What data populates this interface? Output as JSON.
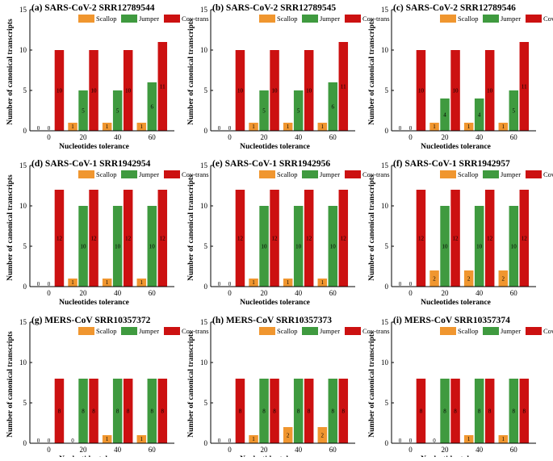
{
  "colors": {
    "Scallop": "#f0962f",
    "Jumper": "#3f9a3f",
    "Cov-trans": "#cc1111"
  },
  "chart_data": [
    {
      "type": "bar",
      "title": "(a) SARS-CoV-2 SRR12789544",
      "categories": [
        "0",
        "20",
        "40",
        "60"
      ],
      "series": [
        {
          "name": "Scallop",
          "values": [
            0,
            1,
            1,
            1
          ]
        },
        {
          "name": "Jumper",
          "values": [
            0,
            5,
            5,
            6
          ]
        },
        {
          "name": "Cov-trans",
          "values": [
            10,
            10,
            10,
            11
          ]
        }
      ],
      "xlabel": "Nucleotides tolerance",
      "ylabel": "Number of canonical transcripts",
      "ylim": [
        0,
        15
      ],
      "yticks": [
        "0",
        "5",
        "10",
        "15"
      ],
      "legend": [
        "Scallop",
        "Jumper",
        "Cov-trans"
      ]
    },
    {
      "type": "bar",
      "title": "(b) SARS-CoV-2 SRR12789545",
      "categories": [
        "0",
        "20",
        "40",
        "60"
      ],
      "series": [
        {
          "name": "Scallop",
          "values": [
            0,
            1,
            1,
            1
          ]
        },
        {
          "name": "Jumper",
          "values": [
            0,
            5,
            5,
            6
          ]
        },
        {
          "name": "Cov-trans",
          "values": [
            10,
            10,
            10,
            11
          ]
        }
      ],
      "xlabel": "Nucleotides tolerance",
      "ylabel": "Number of canonical transcripts",
      "ylim": [
        0,
        15
      ],
      "yticks": [
        "0",
        "5",
        "10",
        "15"
      ],
      "legend": [
        "Scallop",
        "Jumper",
        "Cov-trans"
      ]
    },
    {
      "type": "bar",
      "title": "(c) SARS-CoV-2 SRR12789546",
      "categories": [
        "0",
        "20",
        "40",
        "60"
      ],
      "series": [
        {
          "name": "Scallop",
          "values": [
            0,
            1,
            1,
            1
          ]
        },
        {
          "name": "Jumper",
          "values": [
            0,
            4,
            4,
            5
          ]
        },
        {
          "name": "Cov-trans",
          "values": [
            10,
            10,
            10,
            11
          ]
        }
      ],
      "xlabel": "Nucleotides tolerance",
      "ylabel": "Number of canonical transcripts",
      "ylim": [
        0,
        15
      ],
      "yticks": [
        "0",
        "5",
        "10",
        "15"
      ],
      "legend": [
        "Scallop",
        "Jumper",
        "Cov-trans"
      ]
    },
    {
      "type": "bar",
      "title": "(d) SARS-CoV-1 SRR1942954",
      "categories": [
        "0",
        "20",
        "40",
        "60"
      ],
      "series": [
        {
          "name": "Scallop",
          "values": [
            0,
            1,
            1,
            1
          ]
        },
        {
          "name": "Jumper",
          "values": [
            0,
            10,
            10,
            10
          ]
        },
        {
          "name": "Cov-trans",
          "values": [
            12,
            12,
            12,
            12
          ]
        }
      ],
      "xlabel": "Nucleotides tolerance",
      "ylabel": "Number of canonical transcripts",
      "ylim": [
        0,
        15
      ],
      "yticks": [
        "0",
        "5",
        "10",
        "15"
      ],
      "legend": [
        "Scallop",
        "Jumper",
        "Cov-trans"
      ]
    },
    {
      "type": "bar",
      "title": "(e) SARS-CoV-1 SRR1942956",
      "categories": [
        "0",
        "20",
        "40",
        "60"
      ],
      "series": [
        {
          "name": "Scallop",
          "values": [
            0,
            1,
            1,
            1
          ]
        },
        {
          "name": "Jumper",
          "values": [
            0,
            10,
            10,
            10
          ]
        },
        {
          "name": "Cov-trans",
          "values": [
            12,
            12,
            12,
            12
          ]
        }
      ],
      "xlabel": "Nucleotides tolerance",
      "ylabel": "Number of canonical transcripts",
      "ylim": [
        0,
        15
      ],
      "yticks": [
        "0",
        "5",
        "10",
        "15"
      ],
      "legend": [
        "Scallop",
        "Jumper",
        "Cov-trans"
      ]
    },
    {
      "type": "bar",
      "title": "(f) SARS-CoV-1 SRR1942957",
      "categories": [
        "0",
        "20",
        "40",
        "60"
      ],
      "series": [
        {
          "name": "Scallop",
          "values": [
            0,
            2,
            2,
            2
          ]
        },
        {
          "name": "Jumper",
          "values": [
            0,
            10,
            10,
            10
          ]
        },
        {
          "name": "Cov-trans",
          "values": [
            12,
            12,
            12,
            12
          ]
        }
      ],
      "xlabel": "Nucleotides tolerance",
      "ylabel": "Number of canonical transcripts",
      "ylim": [
        0,
        15
      ],
      "yticks": [
        "0",
        "5",
        "10",
        "15"
      ],
      "legend": [
        "Scallop",
        "Jumper",
        "Cov-trans"
      ]
    },
    {
      "type": "bar",
      "title": "(g) MERS-CoV SRR10357372",
      "categories": [
        "0",
        "20",
        "40",
        "60"
      ],
      "series": [
        {
          "name": "Scallop",
          "values": [
            0,
            0,
            1,
            1
          ]
        },
        {
          "name": "Jumper",
          "values": [
            0,
            8,
            8,
            8
          ]
        },
        {
          "name": "Cov-trans",
          "values": [
            8,
            8,
            8,
            8
          ]
        }
      ],
      "xlabel": "Nucleotides tolerance",
      "ylabel": "Number of canonical transcripts",
      "ylim": [
        0,
        15
      ],
      "yticks": [
        "0",
        "5",
        "10",
        "15"
      ],
      "legend": [
        "Scallop",
        "Jumper",
        "Cov-trans"
      ]
    },
    {
      "type": "bar",
      "title": "(h) MERS-CoV SRR10357373",
      "categories": [
        "0",
        "20",
        "40",
        "60"
      ],
      "series": [
        {
          "name": "Scallop",
          "values": [
            0,
            1,
            2,
            2
          ]
        },
        {
          "name": "Jumper",
          "values": [
            0,
            8,
            8,
            8
          ]
        },
        {
          "name": "Cov-trans",
          "values": [
            8,
            8,
            8,
            8
          ]
        }
      ],
      "xlabel": "Nucleotides tolerance",
      "ylabel": "Number of canonical transcripts",
      "ylim": [
        0,
        15
      ],
      "yticks": [
        "0",
        "5",
        "10",
        "15"
      ],
      "legend": [
        "Scallop",
        "Jumper",
        "Cov-trans"
      ]
    },
    {
      "type": "bar",
      "title": "(i) MERS-CoV SRR10357374",
      "categories": [
        "0",
        "20",
        "40",
        "60"
      ],
      "series": [
        {
          "name": "Scallop",
          "values": [
            0,
            0,
            1,
            1
          ]
        },
        {
          "name": "Jumper",
          "values": [
            0,
            8,
            8,
            8
          ]
        },
        {
          "name": "Cov-trans",
          "values": [
            8,
            8,
            8,
            8
          ]
        }
      ],
      "xlabel": "Nucleotides tolerance",
      "ylabel": "Number of canonical transcripts",
      "ylim": [
        0,
        15
      ],
      "yticks": [
        "0",
        "5",
        "10",
        "15"
      ],
      "legend": [
        "Scallop",
        "Jumper",
        "Cov-trans"
      ]
    }
  ]
}
